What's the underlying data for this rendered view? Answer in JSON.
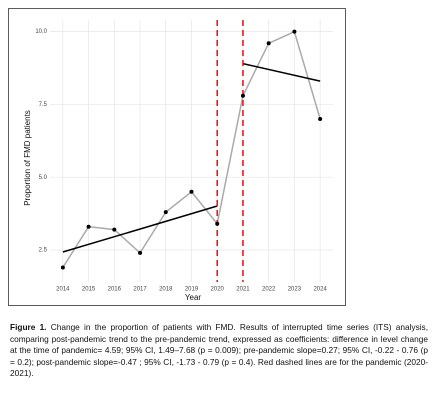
{
  "chart_data": {
    "type": "line",
    "x_label": "Year",
    "y_label": "Proportion of FMD patients",
    "x": [
      2014,
      2015,
      2016,
      2017,
      2018,
      2019,
      2020,
      2021,
      2022,
      2023,
      2024
    ],
    "series": [
      {
        "color": "#aaaaaa",
        "point_color": "#000000",
        "values": [
          1.9,
          3.3,
          3.2,
          2.4,
          3.8,
          4.5,
          3.4,
          7.8,
          9.6,
          10.0,
          7.0
        ]
      }
    ],
    "trend_lines": [
      {
        "color": "#000000",
        "x": [
          2014,
          2020
        ],
        "values": [
          2.43,
          4.01
        ]
      },
      {
        "color": "#000000",
        "x": [
          2021,
          2024
        ],
        "values": [
          8.9,
          8.3
        ]
      }
    ],
    "vlines": {
      "color": "#e8191b",
      "x": [
        2020,
        2021
      ]
    },
    "xlim": [
      2013.5,
      2024.5
    ],
    "ylim": [
      1.4,
      10.4
    ],
    "xticks": [
      2014,
      2015,
      2016,
      2017,
      2018,
      2019,
      2020,
      2021,
      2022,
      2023,
      2024
    ],
    "yticks": [
      {
        "value": 10,
        "label": "10.0"
      },
      7.5,
      {
        "value": 5,
        "label": "5.0"
      },
      2.5
    ],
    "grid": true
  },
  "caption": {
    "label": "Figure 1.",
    "text": "Change in the proportion of patients with FMD. Results of interrupted time series (ITS) analysis, comparing post-pandemic trend to the pre-pandemic trend, expressed as coefficients: difference in level change at the time of pandemic= 4.59; 95% CI, 1.49–7.68 (p = 0.009); pre-pandemic slope=0.27; 95% CI, -0.22 - 0.76 (p = 0.2); post-pandemic slope=-0.47 ; 95% CI, -1.73 - 0.79 (p = 0.4). Red dashed lines are for the pandemic (2020-2021)."
  }
}
